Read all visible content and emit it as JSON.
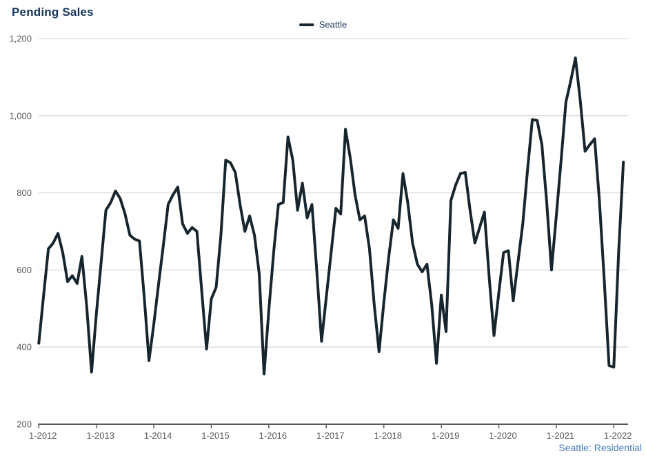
{
  "title": "Pending Sales",
  "legend": {
    "label": "Seattle"
  },
  "footer": {
    "label": "Seattle: Residential"
  },
  "colors": {
    "line": "#17262e",
    "title": "#17375e",
    "legend_text": "#1f3a57",
    "footer_text": "#4a7ebb",
    "axis": "#595959",
    "tick_label": "#595959",
    "grid": "#d9d9d9"
  },
  "chart_data": {
    "type": "line",
    "title": "Pending Sales",
    "x_unit": "month",
    "x_start_label": "1-2012",
    "x_tick_labels": [
      "1-2012",
      "1-2013",
      "1-2014",
      "1-2015",
      "1-2016",
      "1-2017",
      "1-2018",
      "1-2019",
      "1-2020",
      "1-2021",
      "1-2022"
    ],
    "y_ticks": [
      200,
      400,
      600,
      800,
      1000,
      1200
    ],
    "y_tick_labels": [
      "200",
      "400",
      "600",
      "800",
      "1,000",
      "1,200"
    ],
    "ylim": [
      200,
      1200
    ],
    "grid": "horizontal",
    "legend_position": "top-center",
    "series": [
      {
        "name": "Seattle",
        "start": "Jan 2012",
        "end": "Mar 2022",
        "values": [
          410,
          535,
          655,
          670,
          695,
          645,
          570,
          585,
          565,
          635,
          505,
          335,
          485,
          620,
          755,
          775,
          805,
          785,
          745,
          690,
          680,
          675,
          530,
          365,
          460,
          565,
          665,
          770,
          795,
          815,
          720,
          695,
          710,
          700,
          545,
          395,
          525,
          555,
          690,
          885,
          878,
          853,
          770,
          700,
          740,
          690,
          590,
          330,
          495,
          645,
          770,
          775,
          945,
          885,
          755,
          825,
          735,
          770,
          600,
          415,
          530,
          645,
          760,
          745,
          965,
          890,
          795,
          730,
          740,
          655,
          510,
          388,
          515,
          630,
          730,
          708,
          850,
          775,
          670,
          615,
          595,
          615,
          510,
          358,
          535,
          440,
          780,
          820,
          850,
          853,
          755,
          670,
          710,
          750,
          580,
          430,
          540,
          645,
          650,
          520,
          620,
          720,
          860,
          990,
          988,
          925,
          775,
          600,
          740,
          885,
          1035,
          1090,
          1150,
          1040,
          908,
          925,
          940,
          780,
          575,
          352,
          348,
          645,
          880
        ]
      }
    ]
  }
}
